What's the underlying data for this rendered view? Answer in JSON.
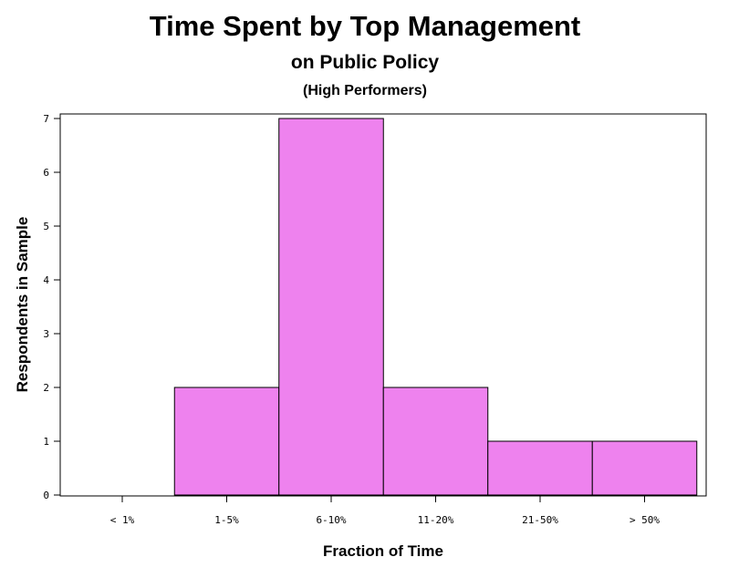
{
  "chart_data": {
    "type": "bar",
    "title": "Time Spent by Top Management",
    "subtitle": "on Public Policy",
    "subsubtitle": "(High Performers)",
    "xlabel": "Fraction of Time",
    "ylabel": "Respondents in Sample",
    "categories": [
      "< 1%",
      "1-5%",
      "6-10%",
      "11-20%",
      "21-50%",
      "> 50%"
    ],
    "values": [
      0,
      2,
      7,
      2,
      1,
      1
    ],
    "ylim": [
      0,
      7
    ],
    "yticks": [
      "0",
      "1",
      "2",
      "3",
      "4",
      "5",
      "6",
      "7"
    ],
    "bar_color": "#ee82ee",
    "grid": false,
    "legend": "none"
  }
}
